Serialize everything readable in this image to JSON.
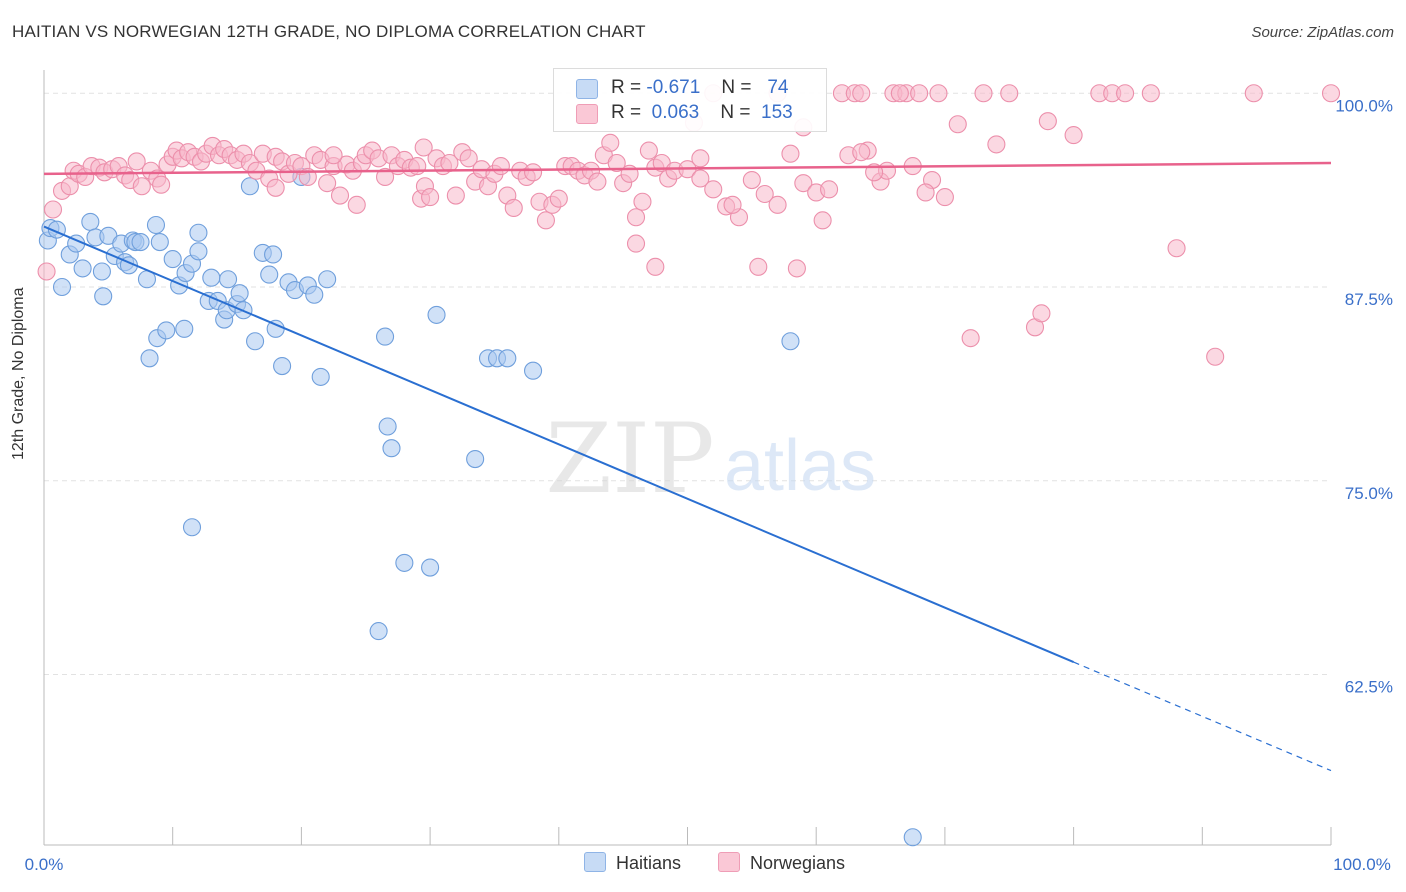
{
  "title": "HAITIAN VS NORWEGIAN 12TH GRADE, NO DIPLOMA CORRELATION CHART",
  "source": "Source: ZipAtlas.com",
  "watermark": {
    "zip": "ZIP",
    "atlas": "atlas"
  },
  "legend": {
    "rows": [
      {
        "r_label": "R =",
        "r_value": "-0.671",
        "n_label": "N =",
        "n_value": "74",
        "color": "#a9c8f0"
      },
      {
        "r_label": "R =",
        "r_value": "0.063",
        "n_label": "N =",
        "n_value": "153",
        "color": "#f7b8ca"
      }
    ]
  },
  "bottom_legend": {
    "haitians": "Haitians",
    "norwegians": "Norwegians"
  },
  "chart_data": {
    "type": "scatter",
    "xlabel": "",
    "ylabel": "12th Grade, No Diploma",
    "xlim": [
      0,
      100
    ],
    "ylim": [
      51.5,
      101.5
    ],
    "x_tick_labels": [
      "0.0%",
      "100.0%"
    ],
    "y_ticks": [
      {
        "value": 100.0,
        "label": "100.0%"
      },
      {
        "value": 87.5,
        "label": "87.5%"
      },
      {
        "value": 75.0,
        "label": "75.0%"
      },
      {
        "value": 62.5,
        "label": "62.5%"
      }
    ],
    "grid": true,
    "series": [
      {
        "name": "Haitians",
        "color": "#a9c8f0",
        "stroke": "#6f9fdc",
        "trend": {
          "x0": 0,
          "y0": 91.4,
          "x1": 80,
          "y1": 63.3,
          "dash_to_x": 100,
          "dash_to_y": 56.3,
          "color": "#2a6fd1"
        },
        "points": [
          [
            0.3,
            90.5
          ],
          [
            0.5,
            91.3
          ],
          [
            1,
            91.2
          ],
          [
            1.4,
            87.5
          ],
          [
            2,
            89.6
          ],
          [
            2.5,
            90.3
          ],
          [
            3,
            88.7
          ],
          [
            3.6,
            91.7
          ],
          [
            4,
            90.7
          ],
          [
            4.5,
            88.5
          ],
          [
            4.6,
            86.9
          ],
          [
            5,
            90.8
          ],
          [
            5.5,
            89.5
          ],
          [
            6,
            90.3
          ],
          [
            6.3,
            89.1
          ],
          [
            6.6,
            88.9
          ],
          [
            6.9,
            90.5
          ],
          [
            7.1,
            90.4
          ],
          [
            7.5,
            90.4
          ],
          [
            8,
            88.0
          ],
          [
            8.2,
            82.9
          ],
          [
            8.7,
            91.5
          ],
          [
            8.8,
            84.2
          ],
          [
            9,
            90.4
          ],
          [
            9.5,
            84.7
          ],
          [
            10,
            89.3
          ],
          [
            10.5,
            87.6
          ],
          [
            10.9,
            84.8
          ],
          [
            11,
            88.4
          ],
          [
            11.5,
            89.0
          ],
          [
            12,
            91.0
          ],
          [
            12,
            89.8
          ],
          [
            12.8,
            86.6
          ],
          [
            13,
            88.1
          ],
          [
            13.5,
            86.6
          ],
          [
            14,
            85.4
          ],
          [
            14.2,
            86.0
          ],
          [
            14.3,
            88.0
          ],
          [
            15,
            86.4
          ],
          [
            15.2,
            87.1
          ],
          [
            15.5,
            86.0
          ],
          [
            16,
            94.0
          ],
          [
            16.4,
            84.0
          ],
          [
            17,
            89.7
          ],
          [
            17.5,
            88.3
          ],
          [
            17.8,
            89.6
          ],
          [
            18,
            84.8
          ],
          [
            18.5,
            82.4
          ],
          [
            19,
            87.8
          ],
          [
            19.5,
            87.3
          ],
          [
            20,
            94.6
          ],
          [
            20.5,
            87.6
          ],
          [
            21,
            87.0
          ],
          [
            21.5,
            81.7
          ],
          [
            22,
            88.0
          ],
          [
            11.5,
            72.0
          ],
          [
            26.5,
            84.3
          ],
          [
            26.7,
            78.5
          ],
          [
            27,
            77.1
          ],
          [
            28,
            69.7
          ],
          [
            30,
            69.4
          ],
          [
            30.5,
            85.7
          ],
          [
            33.5,
            76.4
          ],
          [
            34.5,
            82.9
          ],
          [
            35.2,
            82.9
          ],
          [
            36,
            82.9
          ],
          [
            38,
            82.1
          ],
          [
            26,
            65.3
          ],
          [
            58,
            84.0
          ],
          [
            67.5,
            52.0
          ]
        ]
      },
      {
        "name": "Norwegians",
        "color": "#f7b8ca",
        "stroke": "#ec8fab",
        "trend": {
          "x0": 0,
          "y0": 94.8,
          "x1": 100,
          "y1": 95.5,
          "color": "#e8628c"
        },
        "points": [
          [
            0.2,
            88.5
          ],
          [
            0.7,
            92.5
          ],
          [
            1.4,
            93.7
          ],
          [
            2,
            94.0
          ],
          [
            2.3,
            95.0
          ],
          [
            2.7,
            94.8
          ],
          [
            3.2,
            94.6
          ],
          [
            3.7,
            95.3
          ],
          [
            4.3,
            95.2
          ],
          [
            4.7,
            94.9
          ],
          [
            5.3,
            95.1
          ],
          [
            5.8,
            95.3
          ],
          [
            6.3,
            94.7
          ],
          [
            6.7,
            94.4
          ],
          [
            7.2,
            95.6
          ],
          [
            7.6,
            94.0
          ],
          [
            8.3,
            95.0
          ],
          [
            8.8,
            94.5
          ],
          [
            9.1,
            94.1
          ],
          [
            9.6,
            95.4
          ],
          [
            10,
            95.9
          ],
          [
            10.3,
            96.3
          ],
          [
            10.7,
            95.8
          ],
          [
            11.2,
            96.2
          ],
          [
            11.7,
            95.9
          ],
          [
            12.2,
            95.6
          ],
          [
            12.6,
            96.1
          ],
          [
            13.1,
            96.6
          ],
          [
            13.6,
            96.0
          ],
          [
            14,
            96.4
          ],
          [
            14.5,
            96.0
          ],
          [
            15,
            95.7
          ],
          [
            15.5,
            96.1
          ],
          [
            16,
            95.5
          ],
          [
            16.5,
            95.0
          ],
          [
            17,
            96.1
          ],
          [
            17.5,
            94.5
          ],
          [
            18,
            95.9
          ],
          [
            18.5,
            95.6
          ],
          [
            19,
            94.8
          ],
          [
            19.5,
            95.5
          ],
          [
            20,
            95.3
          ],
          [
            20.5,
            94.6
          ],
          [
            21,
            96.0
          ],
          [
            21.5,
            95.7
          ],
          [
            22,
            94.2
          ],
          [
            22.5,
            95.3
          ],
          [
            23,
            93.4
          ],
          [
            23.5,
            95.4
          ],
          [
            24,
            95.0
          ],
          [
            24.3,
            92.8
          ],
          [
            24.7,
            95.5
          ],
          [
            25,
            96.0
          ],
          [
            25.5,
            96.3
          ],
          [
            26,
            95.8
          ],
          [
            26.5,
            94.6
          ],
          [
            27,
            96.0
          ],
          [
            27.5,
            95.3
          ],
          [
            28,
            95.7
          ],
          [
            28.5,
            95.2
          ],
          [
            29,
            95.3
          ],
          [
            29.3,
            93.2
          ],
          [
            29.6,
            94.0
          ],
          [
            30,
            93.3
          ],
          [
            30.5,
            95.8
          ],
          [
            31,
            95.3
          ],
          [
            31.5,
            95.5
          ],
          [
            32,
            93.4
          ],
          [
            32.5,
            96.2
          ],
          [
            33,
            95.8
          ],
          [
            33.5,
            94.3
          ],
          [
            34,
            95.1
          ],
          [
            34.5,
            94.0
          ],
          [
            35,
            94.8
          ],
          [
            35.5,
            95.3
          ],
          [
            36,
            93.4
          ],
          [
            36.5,
            92.6
          ],
          [
            37,
            95.0
          ],
          [
            37.5,
            94.6
          ],
          [
            38,
            94.9
          ],
          [
            38.5,
            93.0
          ],
          [
            39,
            91.8
          ],
          [
            39.5,
            92.8
          ],
          [
            40,
            93.2
          ],
          [
            40.5,
            95.3
          ],
          [
            41,
            95.3
          ],
          [
            41.5,
            95.0
          ],
          [
            42,
            94.7
          ],
          [
            42.5,
            95.0
          ],
          [
            43,
            94.3
          ],
          [
            43.5,
            96.0
          ],
          [
            44,
            96.8
          ],
          [
            44.5,
            95.5
          ],
          [
            45,
            94.2
          ],
          [
            45.5,
            94.8
          ],
          [
            46,
            92.0
          ],
          [
            46.5,
            93.0
          ],
          [
            47,
            96.3
          ],
          [
            47.5,
            95.2
          ],
          [
            48,
            95.5
          ],
          [
            48.5,
            94.5
          ],
          [
            49,
            95.0
          ],
          [
            50,
            95.1
          ],
          [
            51,
            94.5
          ],
          [
            52,
            93.8
          ],
          [
            53,
            92.7
          ],
          [
            54,
            92.0
          ],
          [
            55,
            94.4
          ],
          [
            56,
            93.5
          ],
          [
            57,
            92.8
          ],
          [
            58,
            96.1
          ],
          [
            59,
            94.2
          ],
          [
            60,
            93.6
          ],
          [
            60.5,
            91.8
          ],
          [
            61,
            93.8
          ],
          [
            62,
            100.0
          ],
          [
            63,
            100.0
          ],
          [
            63.5,
            100.0
          ],
          [
            64,
            96.3
          ],
          [
            65,
            94.3
          ],
          [
            66,
            100.0
          ],
          [
            67,
            100.0
          ],
          [
            68,
            100.0
          ],
          [
            69,
            94.4
          ],
          [
            70,
            93.3
          ],
          [
            71,
            98.0
          ],
          [
            72,
            84.2
          ],
          [
            73,
            100.0
          ],
          [
            74,
            96.7
          ],
          [
            75,
            100.0
          ],
          [
            77,
            84.9
          ],
          [
            77.5,
            85.8
          ],
          [
            78,
            98.2
          ],
          [
            80,
            97.3
          ],
          [
            82,
            100.0
          ],
          [
            83,
            100.0
          ],
          [
            84,
            100.0
          ],
          [
            86,
            100.0
          ],
          [
            88,
            90.0
          ],
          [
            91,
            83.0
          ],
          [
            94,
            100.0
          ],
          [
            100,
            100.0
          ],
          [
            47.5,
            88.8
          ],
          [
            46,
            90.3
          ],
          [
            51,
            95.8
          ],
          [
            52,
            100.0
          ],
          [
            53.5,
            92.8
          ],
          [
            55.5,
            88.8
          ],
          [
            57,
            100.0
          ],
          [
            58.5,
            88.7
          ],
          [
            59,
            97.8
          ],
          [
            50.5,
            98.1
          ],
          [
            65.5,
            95.0
          ],
          [
            62.5,
            96.0
          ],
          [
            63.5,
            96.2
          ],
          [
            64.5,
            94.9
          ],
          [
            66.5,
            100.0
          ],
          [
            67.5,
            95.3
          ],
          [
            68.5,
            93.6
          ],
          [
            69.5,
            100.0
          ],
          [
            29.5,
            96.5
          ],
          [
            22.5,
            96.0
          ],
          [
            18,
            93.9
          ]
        ]
      }
    ]
  }
}
